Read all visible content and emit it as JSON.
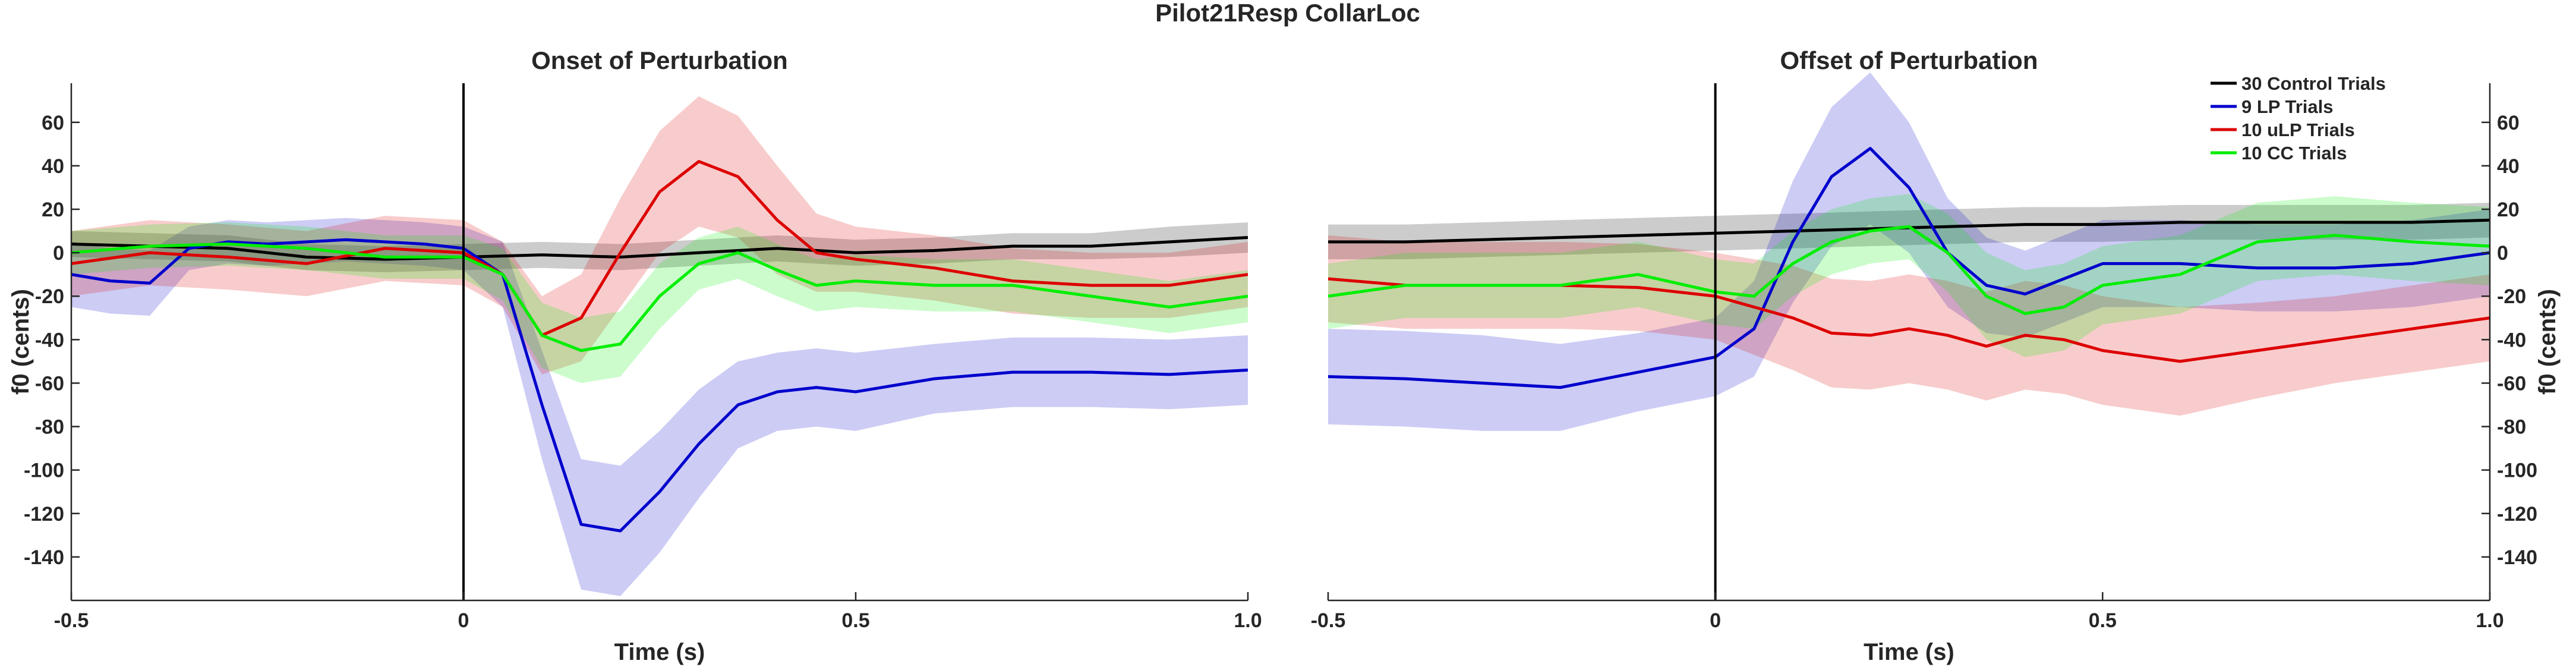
{
  "figure_title": "Pilot21Resp CollarLoc",
  "colors": {
    "control": "#000000",
    "lp": "#0000cc",
    "ulp": "#dd0000",
    "cc": "#00ee00"
  },
  "legend": {
    "placement": "top-right",
    "entries": [
      {
        "key": "control",
        "label": "30 Control Trials"
      },
      {
        "key": "lp",
        "label": "9 LP Trials"
      },
      {
        "key": "ulp",
        "label": "10 uLP Trials"
      },
      {
        "key": "cc",
        "label": "10 CC Trials"
      }
    ]
  },
  "chart_data": [
    {
      "type": "line",
      "title": "Onset of Perturbation",
      "xlabel": "Time (s)",
      "ylabel": "f0 (cents)",
      "xlim": [
        -0.5,
        1.0
      ],
      "ylim": [
        -160,
        78
      ],
      "x_ticks": [
        -0.5,
        0,
        0.5,
        1.0
      ],
      "x_tick_labels": [
        "-0.5",
        "0",
        "0.5",
        "1.0"
      ],
      "y_ticks": [
        -140,
        -120,
        -100,
        -80,
        -60,
        -40,
        -20,
        0,
        20,
        40,
        60
      ],
      "y_tick_labels": [
        "-140",
        "-120",
        "-100",
        "-80",
        "-60",
        "-40",
        "-20",
        "0",
        "20",
        "40",
        "60"
      ],
      "y_axis_side": "left",
      "vertical_line_x": 0,
      "grid": false,
      "series": [
        {
          "key": "control",
          "name": "30 Control Trials",
          "x": [
            -0.5,
            -0.4,
            -0.3,
            -0.2,
            -0.1,
            0.0,
            0.1,
            0.2,
            0.3,
            0.4,
            0.5,
            0.6,
            0.7,
            0.8,
            0.9,
            1.0
          ],
          "y": [
            4,
            3,
            2,
            -2,
            -3,
            -2,
            -1,
            -2,
            0,
            2,
            0,
            1,
            3,
            3,
            5,
            7
          ],
          "band": [
            6,
            6,
            6,
            6,
            6,
            6,
            6,
            6,
            6,
            6,
            6,
            6,
            6,
            6,
            7,
            7
          ]
        },
        {
          "key": "lp",
          "name": "9 LP Trials",
          "x": [
            -0.5,
            -0.45,
            -0.4,
            -0.35,
            -0.3,
            -0.25,
            -0.2,
            -0.15,
            -0.1,
            -0.05,
            0.0,
            0.05,
            0.1,
            0.15,
            0.2,
            0.25,
            0.3,
            0.35,
            0.4,
            0.45,
            0.5,
            0.6,
            0.7,
            0.8,
            0.9,
            1.0
          ],
          "y": [
            -10,
            -13,
            -14,
            2,
            5,
            4,
            5,
            6,
            5,
            4,
            2,
            -10,
            -70,
            -125,
            -128,
            -110,
            -88,
            -70,
            -64,
            -62,
            -64,
            -58,
            -55,
            -55,
            -56,
            -54
          ],
          "band": [
            15,
            15,
            15,
            10,
            10,
            10,
            10,
            10,
            10,
            10,
            10,
            15,
            25,
            30,
            30,
            28,
            25,
            20,
            18,
            18,
            18,
            16,
            16,
            16,
            16,
            16
          ]
        },
        {
          "key": "ulp",
          "name": "10 uLP Trials",
          "x": [
            -0.5,
            -0.4,
            -0.3,
            -0.2,
            -0.1,
            0.0,
            0.05,
            0.1,
            0.15,
            0.2,
            0.25,
            0.3,
            0.35,
            0.4,
            0.45,
            0.5,
            0.6,
            0.7,
            0.8,
            0.9,
            1.0
          ],
          "y": [
            -5,
            0,
            -2,
            -5,
            2,
            0,
            -10,
            -38,
            -30,
            0,
            28,
            42,
            35,
            15,
            0,
            -3,
            -7,
            -13,
            -15,
            -15,
            -10
          ],
          "band": [
            15,
            15,
            15,
            15,
            15,
            15,
            15,
            18,
            20,
            25,
            28,
            30,
            28,
            25,
            18,
            15,
            15,
            15,
            15,
            15,
            15
          ]
        },
        {
          "key": "cc",
          "name": "10 CC Trials",
          "x": [
            -0.5,
            -0.4,
            -0.3,
            -0.2,
            -0.1,
            0.0,
            0.05,
            0.1,
            0.15,
            0.2,
            0.25,
            0.3,
            0.35,
            0.4,
            0.45,
            0.5,
            0.6,
            0.7,
            0.8,
            0.9,
            1.0
          ],
          "y": [
            0,
            3,
            4,
            2,
            -2,
            -2,
            -10,
            -38,
            -45,
            -42,
            -20,
            -5,
            0,
            -8,
            -15,
            -13,
            -15,
            -15,
            -20,
            -25,
            -20
          ],
          "band": [
            10,
            10,
            10,
            10,
            10,
            10,
            12,
            15,
            15,
            15,
            15,
            12,
            12,
            12,
            12,
            12,
            12,
            12,
            12,
            12,
            12
          ]
        }
      ]
    },
    {
      "type": "line",
      "title": "Offset of Perturbation",
      "xlabel": "Time (s)",
      "ylabel": "f0 (cents)",
      "xlim": [
        -0.5,
        1.0
      ],
      "ylim": [
        -160,
        78
      ],
      "x_ticks": [
        -0.5,
        0,
        0.5,
        1.0
      ],
      "x_tick_labels": [
        "-0.5",
        "0",
        "0.5",
        "1.0"
      ],
      "y_ticks": [
        -140,
        -120,
        -100,
        -80,
        -60,
        -40,
        -20,
        0,
        20,
        40,
        60
      ],
      "y_tick_labels": [
        "-140",
        "-120",
        "-100",
        "-80",
        "-60",
        "-40",
        "-20",
        "0",
        "20",
        "40",
        "60"
      ],
      "y_axis_side": "right",
      "vertical_line_x": 0,
      "grid": false,
      "series": [
        {
          "key": "control",
          "name": "30 Control Trials",
          "x": [
            -0.5,
            -0.4,
            -0.3,
            -0.2,
            -0.1,
            0.0,
            0.1,
            0.2,
            0.3,
            0.4,
            0.5,
            0.6,
            0.7,
            0.8,
            0.9,
            1.0
          ],
          "y": [
            5,
            5,
            6,
            7,
            8,
            9,
            10,
            11,
            12,
            13,
            13,
            14,
            14,
            14,
            14,
            15
          ],
          "band": [
            8,
            8,
            8,
            8,
            8,
            8,
            8,
            8,
            8,
            8,
            8,
            8,
            8,
            8,
            8,
            8
          ]
        },
        {
          "key": "lp",
          "name": "9 LP Trials",
          "x": [
            -0.5,
            -0.4,
            -0.3,
            -0.2,
            -0.1,
            0.0,
            0.05,
            0.1,
            0.15,
            0.2,
            0.25,
            0.3,
            0.35,
            0.4,
            0.45,
            0.5,
            0.6,
            0.7,
            0.8,
            0.9,
            1.0
          ],
          "y": [
            -57,
            -58,
            -60,
            -62,
            -55,
            -48,
            -35,
            5,
            35,
            48,
            30,
            0,
            -15,
            -19,
            -12,
            -5,
            -5,
            -7,
            -7,
            -5,
            0
          ],
          "band": [
            22,
            22,
            22,
            20,
            18,
            18,
            22,
            28,
            32,
            35,
            30,
            25,
            22,
            20,
            20,
            20,
            20,
            20,
            20,
            20,
            20
          ]
        },
        {
          "key": "ulp",
          "name": "10 uLP Trials",
          "x": [
            -0.5,
            -0.4,
            -0.3,
            -0.2,
            -0.1,
            0.0,
            0.05,
            0.1,
            0.15,
            0.2,
            0.25,
            0.3,
            0.35,
            0.4,
            0.45,
            0.5,
            0.6,
            0.7,
            0.8,
            0.9,
            1.0
          ],
          "y": [
            -12,
            -15,
            -15,
            -15,
            -16,
            -20,
            -25,
            -30,
            -37,
            -38,
            -35,
            -38,
            -43,
            -38,
            -40,
            -45,
            -50,
            -45,
            -40,
            -35,
            -30
          ],
          "band": [
            20,
            20,
            20,
            20,
            20,
            20,
            22,
            24,
            25,
            25,
            25,
            25,
            25,
            25,
            25,
            25,
            25,
            22,
            20,
            20,
            20
          ]
        },
        {
          "key": "cc",
          "name": "10 CC Trials",
          "x": [
            -0.5,
            -0.4,
            -0.3,
            -0.2,
            -0.1,
            0.0,
            0.05,
            0.1,
            0.15,
            0.2,
            0.25,
            0.3,
            0.35,
            0.4,
            0.45,
            0.5,
            0.6,
            0.7,
            0.8,
            0.9,
            1.0
          ],
          "y": [
            -20,
            -15,
            -15,
            -15,
            -10,
            -18,
            -20,
            -5,
            5,
            10,
            12,
            0,
            -20,
            -28,
            -25,
            -15,
            -10,
            5,
            8,
            5,
            3
          ],
          "band": [
            15,
            15,
            15,
            15,
            15,
            15,
            15,
            15,
            15,
            15,
            15,
            18,
            20,
            20,
            20,
            18,
            18,
            18,
            18,
            18,
            18
          ]
        }
      ]
    }
  ]
}
